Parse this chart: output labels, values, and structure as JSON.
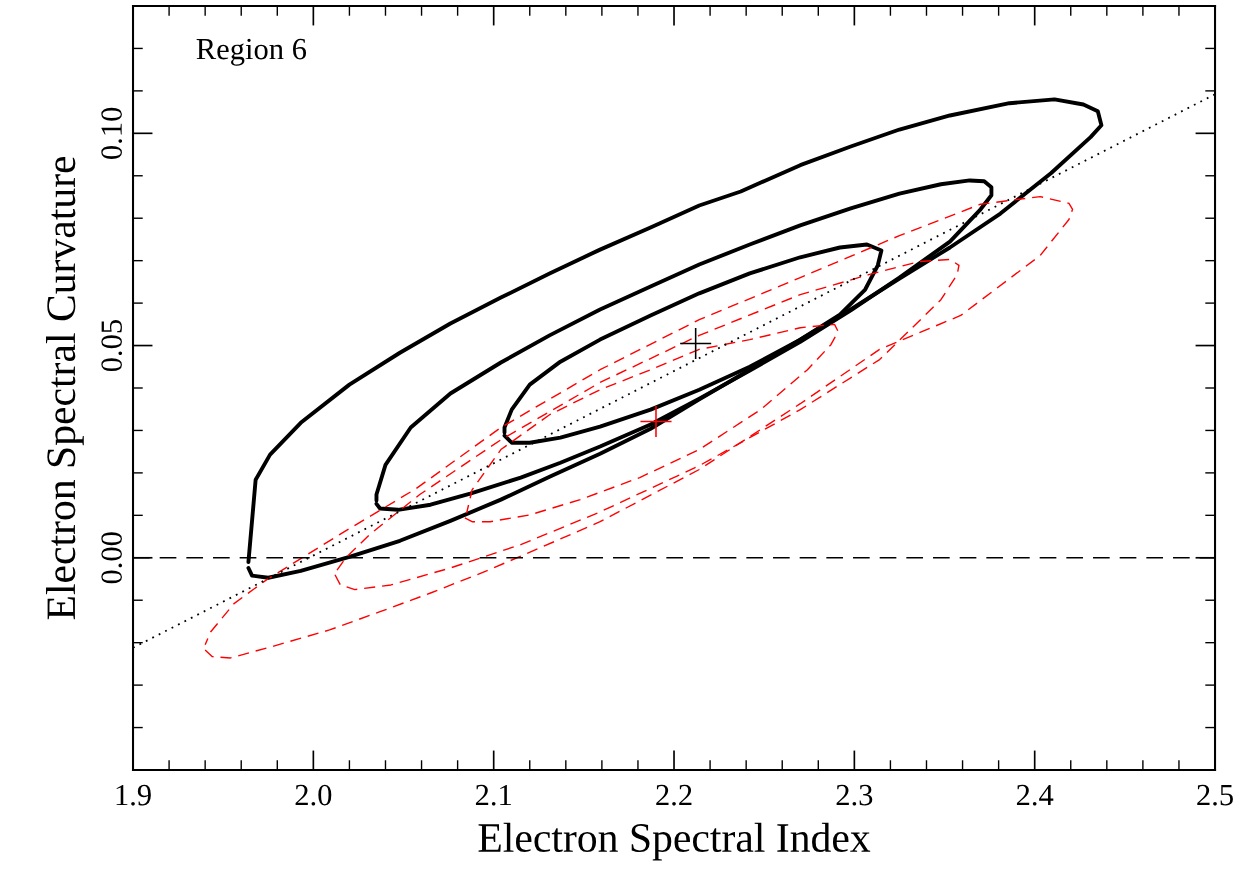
{
  "chart_data": {
    "type": "line",
    "xlabel": "Electron Spectral Index",
    "ylabel": "Electron Spectral Curvature",
    "annotations": [
      "Region 6"
    ],
    "xlim": [
      1.9,
      2.5
    ],
    "ylim": [
      -0.05,
      0.13
    ],
    "xticks": [
      1.9,
      {
        "value": 2,
        "label": "2.0"
      },
      2.1,
      2.2,
      2.3,
      2.4,
      2.5
    ],
    "yticks": [
      {
        "value": 0,
        "label": "0.00"
      },
      {
        "value": 0.05,
        "label": "0.05"
      },
      {
        "value": 0.1,
        "label": "0.10"
      }
    ],
    "grid": false,
    "ref_lines": [
      {
        "axis": "y",
        "value": 0,
        "color": "#000000",
        "line_style": "dashed"
      }
    ],
    "series": [
      {
        "type": "line",
        "color": "#000000",
        "line_style": "solid",
        "x": [
          1.964,
          1.966,
          1.975,
          1.993,
          2.02,
          2.048,
          2.076,
          2.104,
          2.131,
          2.159,
          2.187,
          2.214,
          2.242,
          2.27,
          2.298,
          2.325,
          2.353,
          2.381,
          2.409,
          2.431,
          2.437,
          2.435,
          2.427,
          2.411,
          2.386,
          2.353,
          2.325,
          2.298,
          2.27,
          2.237,
          2.214,
          2.187,
          2.159,
          2.131,
          2.104,
          2.076,
          2.048,
          2.02,
          1.993,
          1.976,
          1.968,
          1.964
        ],
        "values": [
          -0.0024,
          -0.0042,
          -0.0047,
          -0.0031,
          0.0002,
          0.004,
          0.0087,
          0.0137,
          0.0191,
          0.0245,
          0.0304,
          0.0373,
          0.0443,
          0.0514,
          0.0585,
          0.0658,
          0.0731,
          0.0811,
          0.0906,
          0.0991,
          0.1019,
          0.1052,
          0.1068,
          0.108,
          0.1071,
          0.1042,
          0.1009,
          0.0969,
          0.0925,
          0.0863,
          0.083,
          0.0778,
          0.0726,
          0.067,
          0.0613,
          0.0552,
          0.0483,
          0.0408,
          0.0318,
          0.0243,
          0.0184,
          -0.001
        ]
      },
      {
        "type": "line",
        "color": "#000000",
        "line_style": "solid",
        "x": [
          2.035,
          2.037,
          2.047,
          2.065,
          2.087,
          2.115,
          2.137,
          2.159,
          2.187,
          2.214,
          2.242,
          2.27,
          2.298,
          2.325,
          2.353,
          2.37,
          2.376,
          2.376,
          2.372,
          2.364,
          2.348,
          2.325,
          2.298,
          2.27,
          2.242,
          2.214,
          2.187,
          2.159,
          2.131,
          2.104,
          2.076,
          2.054,
          2.04,
          2.035,
          2.035
        ],
        "values": [
          0.0127,
          0.0116,
          0.0113,
          0.0125,
          0.0151,
          0.0189,
          0.0224,
          0.0262,
          0.0314,
          0.0375,
          0.0441,
          0.0509,
          0.0583,
          0.066,
          0.0745,
          0.0821,
          0.0854,
          0.0873,
          0.0887,
          0.0889,
          0.088,
          0.0858,
          0.0823,
          0.0783,
          0.0738,
          0.0691,
          0.0639,
          0.0585,
          0.0524,
          0.046,
          0.0387,
          0.0307,
          0.0219,
          0.0149,
          0.0135
        ]
      },
      {
        "type": "line",
        "color": "#000000",
        "line_style": "solid",
        "x": [
          2.106,
          2.11,
          2.12,
          2.137,
          2.159,
          2.187,
          2.214,
          2.242,
          2.27,
          2.292,
          2.306,
          2.313,
          2.315,
          2.307,
          2.292,
          2.27,
          2.242,
          2.214,
          2.187,
          2.159,
          2.137,
          2.12,
          2.11,
          2.106,
          2.106
        ],
        "values": [
          0.0288,
          0.0271,
          0.0271,
          0.0283,
          0.0309,
          0.0349,
          0.0396,
          0.045,
          0.0514,
          0.0573,
          0.0632,
          0.0689,
          0.0724,
          0.0738,
          0.0731,
          0.0708,
          0.067,
          0.0623,
          0.0571,
          0.0514,
          0.0462,
          0.0408,
          0.0349,
          0.0307,
          0.0295
        ]
      },
      {
        "type": "line",
        "color": "#ff0000",
        "line_style": "dashed",
        "x": [
          1.94,
          1.944,
          1.954,
          1.978,
          2.009,
          2.037,
          2.065,
          2.096,
          2.126,
          2.159,
          2.214,
          2.27,
          2.314,
          2.359,
          2.403,
          2.419,
          2.421,
          2.419,
          2.403,
          2.37,
          2.325,
          2.27,
          2.214,
          2.159,
          2.104,
          2.057,
          2.017,
          1.974,
          1.956,
          1.943,
          1.94
        ],
        "values": [
          -0.0217,
          -0.0233,
          -0.0236,
          -0.0208,
          -0.017,
          -0.0127,
          -0.0083,
          -0.0031,
          0.0024,
          0.0085,
          0.0208,
          0.0363,
          0.0491,
          0.0571,
          0.0712,
          0.0797,
          0.0821,
          0.0835,
          0.0851,
          0.0833,
          0.0759,
          0.066,
          0.0561,
          0.0443,
          0.0307,
          0.0163,
          0.0061,
          -0.0052,
          -0.0108,
          -0.0175,
          -0.0205
        ]
      },
      {
        "type": "line",
        "color": "#ff0000",
        "line_style": "dashed",
        "x": [
          2.012,
          2.015,
          2.023,
          2.043,
          2.076,
          2.115,
          2.159,
          2.214,
          2.27,
          2.314,
          2.348,
          2.357,
          2.358,
          2.353,
          2.336,
          2.308,
          2.27,
          2.214,
          2.159,
          2.104,
          2.059,
          2.031,
          2.018,
          2.013
        ],
        "values": [
          -0.004,
          -0.0064,
          -0.0075,
          -0.0064,
          -0.0024,
          0.0031,
          0.0108,
          0.0217,
          0.0349,
          0.0467,
          0.0608,
          0.0667,
          0.0689,
          0.0703,
          0.0698,
          0.0667,
          0.062,
          0.0524,
          0.0413,
          0.0278,
          0.0149,
          0.0054,
          0.0,
          -0.003
        ]
      },
      {
        "type": "line",
        "color": "#ff0000",
        "line_style": "dashed",
        "x": [
          2.084,
          2.088,
          2.098,
          2.12,
          2.148,
          2.181,
          2.214,
          2.248,
          2.274,
          2.287,
          2.291,
          2.289,
          2.27,
          2.242,
          2.214,
          2.187,
          2.159,
          2.131,
          2.104,
          2.088,
          2.085
        ],
        "values": [
          0.0094,
          0.0085,
          0.0085,
          0.0101,
          0.0137,
          0.0189,
          0.0255,
          0.0349,
          0.0443,
          0.0502,
          0.0533,
          0.055,
          0.0542,
          0.0514,
          0.0491,
          0.0443,
          0.0396,
          0.0337,
          0.0255,
          0.016,
          0.0105
        ]
      },
      {
        "type": "line",
        "color": "#000000",
        "line_style": "dotted",
        "x": [
          1.9,
          2.5
        ],
        "values": [
          -0.0212,
          0.1092
        ]
      },
      {
        "type": "scatter",
        "color": "#000000",
        "marker": "cross",
        "x": [
          2.212
        ],
        "values": [
          0.0505
        ]
      },
      {
        "type": "scatter",
        "color": "#ff0000",
        "marker": "cross",
        "x": [
          2.19
        ],
        "values": [
          0.0321
        ]
      }
    ]
  }
}
